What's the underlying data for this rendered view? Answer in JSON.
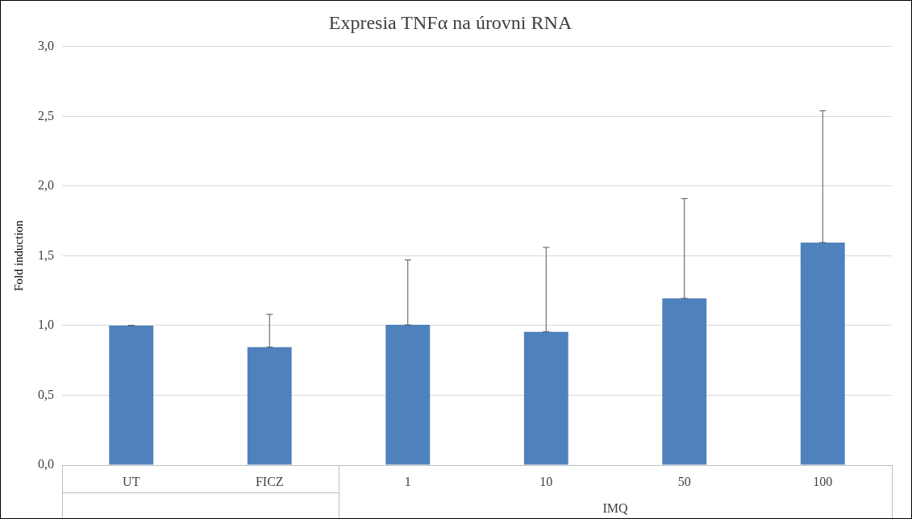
{
  "chart_data": {
    "type": "bar",
    "title": "Expresia TNFα na úrovni RNA",
    "ylabel": "Fold induction",
    "xlabel": "IMQ",
    "categories": [
      "UT",
      "FICZ",
      "1",
      "10",
      "50",
      "100"
    ],
    "values": [
      1.0,
      0.845,
      1.005,
      0.955,
      1.195,
      1.595
    ],
    "errors": [
      [
        1.0,
        1.0
      ],
      [
        0.845,
        1.08
      ],
      [
        1.005,
        1.47
      ],
      [
        0.955,
        1.56
      ],
      [
        1.195,
        1.91
      ],
      [
        1.595,
        2.54
      ]
    ],
    "color": "#4f81bd",
    "ylim": [
      0,
      3
    ],
    "yticks": [
      {
        "value": 0,
        "label": "0,0"
      },
      {
        "value": 0.5,
        "label": "0,5"
      },
      {
        "value": 1,
        "label": "1,0"
      },
      {
        "value": 1.5,
        "label": "1,5"
      },
      {
        "value": 2,
        "label": "2,0"
      },
      {
        "value": 2.5,
        "label": "2,5"
      },
      {
        "value": 3,
        "label": "3,0"
      }
    ],
    "grid": "y",
    "legend": false
  }
}
